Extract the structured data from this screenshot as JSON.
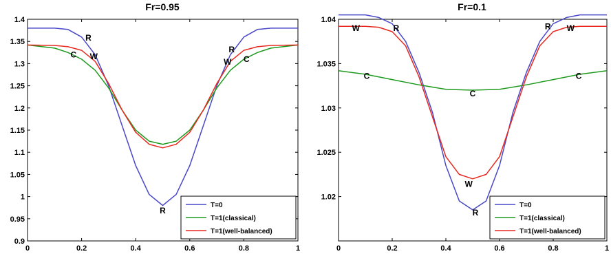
{
  "chart_data": [
    {
      "type": "line",
      "title": "Fr=0.95",
      "xlim": [
        0,
        1
      ],
      "ylim": [
        0.9,
        1.4
      ],
      "xticks": [
        "0",
        "0.2",
        "0.4",
        "0.6",
        "0.8",
        "1"
      ],
      "yticks": [
        "0.9",
        "0.95",
        "1",
        "1.05",
        "1.1",
        "1.15",
        "1.2",
        "1.25",
        "1.3",
        "1.35",
        "1.4"
      ],
      "grid": false,
      "legend": "bottom-right",
      "series": [
        {
          "name": "T=0",
          "color": "#4848c8",
          "x": [
            0,
            0.1,
            0.15,
            0.2,
            0.25,
            0.3,
            0.35,
            0.4,
            0.45,
            0.5,
            0.55,
            0.6,
            0.65,
            0.7,
            0.75,
            0.8,
            0.85,
            0.9,
            1
          ],
          "y": [
            1.38,
            1.38,
            1.377,
            1.36,
            1.32,
            1.25,
            1.16,
            1.07,
            1.005,
            0.98,
            1.005,
            1.07,
            1.16,
            1.25,
            1.32,
            1.36,
            1.377,
            1.38,
            1.38
          ]
        },
        {
          "name": "T=1(classical)",
          "color": "#1d9a1d",
          "x": [
            0,
            0.1,
            0.15,
            0.2,
            0.25,
            0.3,
            0.35,
            0.4,
            0.45,
            0.5,
            0.55,
            0.6,
            0.65,
            0.7,
            0.75,
            0.8,
            0.85,
            0.9,
            1
          ],
          "y": [
            1.342,
            1.335,
            1.325,
            1.31,
            1.285,
            1.245,
            1.195,
            1.15,
            1.125,
            1.118,
            1.125,
            1.15,
            1.195,
            1.245,
            1.285,
            1.31,
            1.325,
            1.335,
            1.342
          ]
        },
        {
          "name": "T=1(well-balanced)",
          "color": "#e8281e",
          "x": [
            0,
            0.1,
            0.15,
            0.2,
            0.25,
            0.3,
            0.35,
            0.4,
            0.45,
            0.5,
            0.55,
            0.6,
            0.65,
            0.7,
            0.75,
            0.8,
            0.85,
            0.9,
            1
          ],
          "y": [
            1.342,
            1.341,
            1.338,
            1.33,
            1.305,
            1.255,
            1.195,
            1.145,
            1.118,
            1.11,
            1.118,
            1.145,
            1.195,
            1.255,
            1.305,
            1.33,
            1.338,
            1.341,
            1.342
          ]
        }
      ],
      "annotations": [
        {
          "text": "R",
          "x": 0.225,
          "y": 1.358
        },
        {
          "text": "C",
          "x": 0.17,
          "y": 1.32
        },
        {
          "text": "W",
          "x": 0.245,
          "y": 1.316
        },
        {
          "text": "R",
          "x": 0.5,
          "y": 0.968
        },
        {
          "text": "R",
          "x": 0.755,
          "y": 1.332
        },
        {
          "text": "W",
          "x": 0.74,
          "y": 1.304
        },
        {
          "text": "C",
          "x": 0.81,
          "y": 1.31
        }
      ]
    },
    {
      "type": "line",
      "title": "Fr=0.1",
      "xlim": [
        0,
        1
      ],
      "ylim": [
        1.015,
        1.04
      ],
      "xticks": [
        "0",
        "0.2",
        "0.4",
        "0.6",
        "0.8",
        "1"
      ],
      "yticks": [
        "1.02",
        "1.025",
        "1.03",
        "1.035",
        "1.04"
      ],
      "grid": false,
      "legend": "bottom-right",
      "series": [
        {
          "name": "T=0",
          "color": "#4848c8",
          "x": [
            0,
            0.1,
            0.15,
            0.2,
            0.25,
            0.3,
            0.35,
            0.4,
            0.45,
            0.5,
            0.55,
            0.6,
            0.65,
            0.7,
            0.75,
            0.8,
            0.85,
            0.9,
            1
          ],
          "y": [
            1.0405,
            1.0405,
            1.0402,
            1.0395,
            1.0375,
            1.034,
            1.0295,
            1.0235,
            1.0195,
            1.0185,
            1.0195,
            1.0235,
            1.0295,
            1.034,
            1.0375,
            1.0395,
            1.0402,
            1.0405,
            1.0405
          ]
        },
        {
          "name": "T=1(classical)",
          "color": "#1d9a1d",
          "x": [
            0,
            0.1,
            0.2,
            0.3,
            0.4,
            0.5,
            0.6,
            0.7,
            0.8,
            0.9,
            1
          ],
          "y": [
            1.0342,
            1.0338,
            1.0332,
            1.0326,
            1.0321,
            1.032,
            1.0321,
            1.0326,
            1.0332,
            1.0338,
            1.0342
          ]
        },
        {
          "name": "T=1(well-balanced)",
          "color": "#e8281e",
          "x": [
            0,
            0.1,
            0.15,
            0.2,
            0.25,
            0.3,
            0.35,
            0.4,
            0.45,
            0.5,
            0.55,
            0.6,
            0.65,
            0.7,
            0.75,
            0.8,
            0.85,
            0.9,
            1
          ],
          "y": [
            1.0392,
            1.0392,
            1.0391,
            1.0386,
            1.037,
            1.0335,
            1.029,
            1.0245,
            1.0225,
            1.022,
            1.0225,
            1.0245,
            1.029,
            1.0335,
            1.037,
            1.0386,
            1.0391,
            1.0392,
            1.0392
          ]
        }
      ],
      "annotations": [
        {
          "text": "W",
          "x": 0.065,
          "y": 1.039
        },
        {
          "text": "R",
          "x": 0.215,
          "y": 1.039
        },
        {
          "text": "R",
          "x": 0.78,
          "y": 1.0392
        },
        {
          "text": "W",
          "x": 0.865,
          "y": 1.039
        },
        {
          "text": "C",
          "x": 0.105,
          "y": 1.0336
        },
        {
          "text": "C",
          "x": 0.5,
          "y": 1.0316
        },
        {
          "text": "C",
          "x": 0.895,
          "y": 1.0336
        },
        {
          "text": "W",
          "x": 0.485,
          "y": 1.0214
        },
        {
          "text": "R",
          "x": 0.51,
          "y": 1.0182
        }
      ]
    }
  ]
}
